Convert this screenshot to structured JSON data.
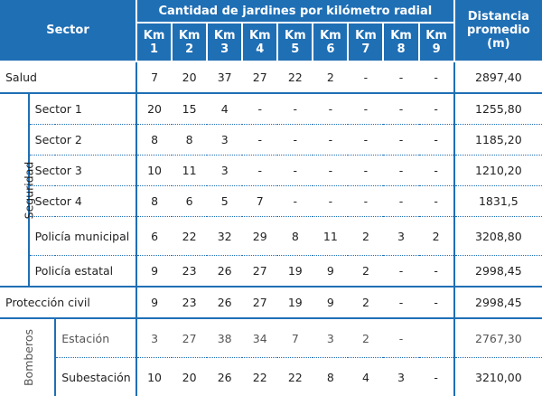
{
  "header": {
    "sector": "Sector",
    "group": "Cantidad de jardines por kilómetro radial",
    "distance": "Distancia promedio (m)",
    "km": [
      "Km 1",
      "Km 2",
      "Km 3",
      "Km 4",
      "Km 5",
      "Km 6",
      "Km 7",
      "Km 8",
      "Km 9"
    ]
  },
  "rows": {
    "salud": {
      "label": "Salud",
      "values": [
        "7",
        "20",
        "37",
        "27",
        "22",
        "2",
        "-",
        "-",
        "-"
      ],
      "dist": "2897,40"
    },
    "seguridad_label": "Seguridad",
    "s1": {
      "label": "Sector 1",
      "values": [
        "20",
        "15",
        "4",
        "-",
        "-",
        "-",
        "-",
        "-",
        "-"
      ],
      "dist": "1255,80"
    },
    "s2": {
      "label": "Sector 2",
      "values": [
        "8",
        "8",
        "3",
        "-",
        "-",
        "-",
        "-",
        "-",
        "-"
      ],
      "dist": "1185,20"
    },
    "s3": {
      "label": "Sector 3",
      "values": [
        "10",
        "11",
        "3",
        "-",
        "-",
        "-",
        "-",
        "-",
        "-"
      ],
      "dist": "1210,20"
    },
    "s4": {
      "label": "Sector 4",
      "values": [
        "8",
        "6",
        "5",
        "7",
        "-",
        "-",
        "-",
        "-",
        "-"
      ],
      "dist": "1831,5"
    },
    "pm": {
      "label": "Policía municipal",
      "values": [
        "6",
        "22",
        "32",
        "29",
        "8",
        "11",
        "2",
        "3",
        "2"
      ],
      "dist": "3208,80"
    },
    "pe": {
      "label": "Policía estatal",
      "values": [
        "9",
        "23",
        "26",
        "27",
        "19",
        "9",
        "2",
        "-",
        "-"
      ],
      "dist": "2998,45"
    },
    "pc": {
      "label": "Protección civil",
      "values": [
        "9",
        "23",
        "26",
        "27",
        "19",
        "9",
        "2",
        "-",
        "-"
      ],
      "dist": "2998,45"
    },
    "bomberos_label": "Bomberos",
    "est": {
      "label": "Estación",
      "values": [
        "3",
        "27",
        "38",
        "34",
        "7",
        "3",
        "2",
        "-",
        ""
      ],
      "dist": "2767,30"
    },
    "sub": {
      "label": "Subestación",
      "values": [
        "10",
        "20",
        "26",
        "22",
        "22",
        "8",
        "4",
        "3",
        "-"
      ],
      "dist": "3210,00"
    }
  }
}
